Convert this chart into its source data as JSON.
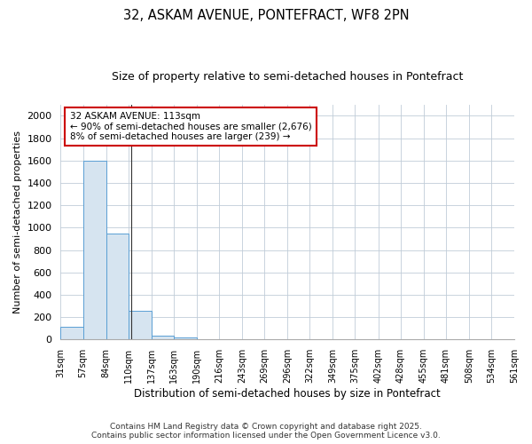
{
  "title1": "32, ASKAM AVENUE, PONTEFRACT, WF8 2PN",
  "title2": "Size of property relative to semi-detached houses in Pontefract",
  "xlabel": "Distribution of semi-detached houses by size in Pontefract",
  "ylabel": "Number of semi-detached properties",
  "bin_edges": [
    31,
    57,
    84,
    110,
    137,
    163,
    190,
    216,
    243,
    269,
    296,
    322,
    349,
    375,
    402,
    428,
    455,
    481,
    508,
    534,
    561
  ],
  "bar_heights": [
    110,
    1600,
    950,
    260,
    35,
    20,
    0,
    0,
    0,
    0,
    0,
    0,
    0,
    0,
    0,
    0,
    0,
    0,
    0,
    0
  ],
  "bar_color": "#d6e4f0",
  "bar_edge_color": "#5a9fd4",
  "grid_color": "#c0ccd8",
  "background_color": "#ffffff",
  "annotation_line1": "32 ASKAM AVENUE: 113sqm",
  "annotation_line2": "← 90% of semi-detached houses are smaller (2,676)",
  "annotation_line3": "8% of semi-detached houses are larger (239) →",
  "annotation_box_color": "#ffffff",
  "annotation_border_color": "#cc0000",
  "property_line_x": 113,
  "ylim": [
    0,
    2100
  ],
  "yticks": [
    0,
    200,
    400,
    600,
    800,
    1000,
    1200,
    1400,
    1600,
    1800,
    2000
  ],
  "footer1": "Contains HM Land Registry data © Crown copyright and database right 2025.",
  "footer2": "Contains public sector information licensed under the Open Government Licence v3.0."
}
